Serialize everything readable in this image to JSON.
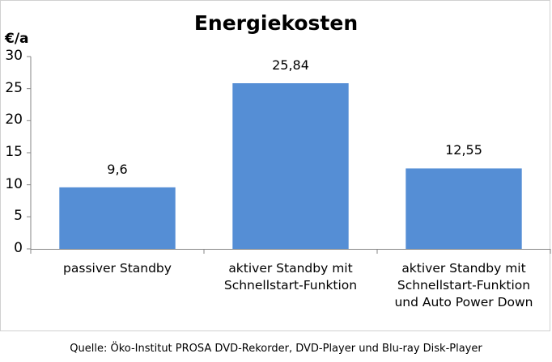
{
  "chart_data": {
    "type": "bar",
    "title": "Energiekosten",
    "ylabel": "€/a",
    "xlabel": "",
    "categories": [
      "passiver Standby",
      "aktiver Standby mit Schnellstart-Funktion",
      "aktiver Standby mit Schnellstart-Funktion und Auto Power Down"
    ],
    "category_lines": [
      [
        "passiver Standby"
      ],
      [
        "aktiver Standby mit",
        "Schnellstart-Funktion"
      ],
      [
        "aktiver Standby mit",
        "Schnellstart-Funktion",
        "und Auto Power Down"
      ]
    ],
    "values": [
      9.6,
      25.84,
      12.55
    ],
    "value_labels": [
      "9,6",
      "25,84",
      "12,55"
    ],
    "ylim": [
      0,
      30
    ],
    "yticks": [
      0,
      5,
      10,
      15,
      20,
      25,
      30
    ],
    "grid": false,
    "bar_color": "#558ed5"
  },
  "source": "Quelle: Öko-Institut PROSA DVD-Rekorder,  DVD-Player und Blu-ray Disk-Player"
}
